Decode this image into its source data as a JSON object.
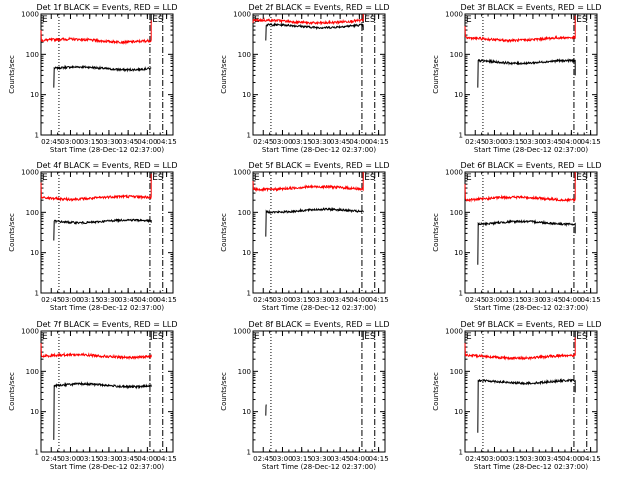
{
  "figure": {
    "x_label": "Start Time (28-Dec-12 02:37:00)",
    "y_label": "Counts/sec",
    "x_ticks": [
      "02:45",
      "03:00",
      "03:15",
      "03:30",
      "03:45",
      "04:00",
      "04:15"
    ],
    "y_ticks": [
      "1",
      "10",
      "100",
      "1000"
    ],
    "colors": {
      "events": "#000000",
      "lld": "#ff0000"
    }
  },
  "chart_data": [
    {
      "type": "line",
      "title": "Det 1f BLACK = Events, RED = LLD",
      "x_range": [
        "02:37:00",
        "04:20:00"
      ],
      "y_scale": "log",
      "ylim": [
        1,
        1000
      ],
      "markers": [
        {
          "label": "E",
          "time": "02:37:00"
        },
        {
          "label": "ES",
          "time": "04:03:00"
        }
      ],
      "vlines": {
        "dotted": [
          "02:51:00"
        ],
        "dashdot": [
          "04:02:00",
          "04:12:00"
        ]
      },
      "series": [
        {
          "name": "BLACK = Events",
          "color": "#000000",
          "start": "02:47:00",
          "end": "04:03:00",
          "start_value": 15,
          "level": 45,
          "end_value": 45
        },
        {
          "name": "RED = LLD",
          "color": "#ff0000",
          "start": "02:37:00",
          "end": "04:03:00",
          "start_value": 400,
          "level": 220,
          "end_value": 700
        }
      ]
    },
    {
      "type": "line",
      "title": "Det 2f BLACK = Events, RED = LLD",
      "x_range": [
        "02:37:00",
        "04:20:00"
      ],
      "y_scale": "log",
      "ylim": [
        1,
        1000
      ],
      "markers": [
        {
          "label": "E",
          "time": "02:37:00"
        },
        {
          "label": "ES",
          "time": "04:03:00"
        }
      ],
      "vlines": {
        "dotted": [
          "02:51:00"
        ],
        "dashdot": [
          "04:02:00",
          "04:12:00"
        ]
      },
      "series": [
        {
          "name": "BLACK = Events",
          "color": "#000000",
          "start": "02:47:00",
          "end": "04:03:00",
          "start_value": 220,
          "level": 500,
          "end_value": 400
        },
        {
          "name": "RED = LLD",
          "color": "#ff0000",
          "start": "02:37:00",
          "end": "04:03:00",
          "start_value": 600,
          "level": 650,
          "end_value": 1000
        }
      ]
    },
    {
      "type": "line",
      "title": "Det 3f BLACK = Events, RED = LLD",
      "x_range": [
        "02:37:00",
        "04:20:00"
      ],
      "y_scale": "log",
      "ylim": [
        1,
        1000
      ],
      "markers": [
        {
          "label": "E",
          "time": "02:37:00"
        },
        {
          "label": "ES",
          "time": "04:03:00"
        }
      ],
      "vlines": {
        "dotted": [
          "02:51:00"
        ],
        "dashdot": [
          "04:02:00",
          "04:12:00"
        ]
      },
      "series": [
        {
          "name": "BLACK = Events",
          "color": "#000000",
          "start": "02:47:00",
          "end": "04:03:00",
          "start_value": 15,
          "level": 65,
          "end_value": 30
        },
        {
          "name": "RED = LLD",
          "color": "#ff0000",
          "start": "02:37:00",
          "end": "04:03:00",
          "start_value": 500,
          "level": 240,
          "end_value": 900
        }
      ]
    },
    {
      "type": "line",
      "title": "Det 4f BLACK = Events, RED = LLD",
      "x_range": [
        "02:37:00",
        "04:20:00"
      ],
      "y_scale": "log",
      "ylim": [
        1,
        1000
      ],
      "markers": [
        {
          "label": "E",
          "time": "02:37:00"
        },
        {
          "label": "ES",
          "time": "04:03:00"
        }
      ],
      "vlines": {
        "dotted": [
          "02:51:00"
        ],
        "dashdot": [
          "04:02:00",
          "04:12:00"
        ]
      },
      "series": [
        {
          "name": "BLACK = Events",
          "color": "#000000",
          "start": "02:47:00",
          "end": "04:03:00",
          "start_value": 20,
          "level": 60,
          "end_value": 55
        },
        {
          "name": "RED = LLD",
          "color": "#ff0000",
          "start": "02:37:00",
          "end": "04:03:00",
          "start_value": 550,
          "level": 230,
          "end_value": 900
        }
      ]
    },
    {
      "type": "line",
      "title": "Det 5f BLACK = Events, RED = LLD",
      "x_range": [
        "02:37:00",
        "04:20:00"
      ],
      "y_scale": "log",
      "ylim": [
        1,
        1000
      ],
      "markers": [
        {
          "label": "E",
          "time": "02:37:00"
        },
        {
          "label": "ES",
          "time": "04:03:00"
        }
      ],
      "vlines": {
        "dotted": [
          "02:51:00"
        ],
        "dashdot": [
          "04:02:00",
          "04:12:00"
        ]
      },
      "series": [
        {
          "name": "BLACK = Events",
          "color": "#000000",
          "start": "02:47:00",
          "end": "04:03:00",
          "start_value": 25,
          "level": 110,
          "end_value": 100
        },
        {
          "name": "RED = LLD",
          "color": "#ff0000",
          "start": "02:37:00",
          "end": "04:03:00",
          "start_value": 600,
          "level": 400,
          "end_value": 1000
        }
      ]
    },
    {
      "type": "line",
      "title": "Det 6f BLACK = Events, RED = LLD",
      "x_range": [
        "02:37:00",
        "04:20:00"
      ],
      "y_scale": "log",
      "ylim": [
        1,
        1000
      ],
      "markers": [
        {
          "label": "E",
          "time": "02:37:00"
        },
        {
          "label": "ES",
          "time": "04:03:00"
        }
      ],
      "vlines": {
        "dotted": [
          "02:51:00"
        ],
        "dashdot": [
          "04:02:00",
          "04:12:00"
        ]
      },
      "series": [
        {
          "name": "BLACK = Events",
          "color": "#000000",
          "start": "02:47:00",
          "end": "04:03:00",
          "start_value": 5,
          "level": 55,
          "end_value": 30
        },
        {
          "name": "RED = LLD",
          "color": "#ff0000",
          "start": "02:37:00",
          "end": "04:03:00",
          "start_value": 500,
          "level": 220,
          "end_value": 1000
        }
      ]
    },
    {
      "type": "line",
      "title": "Det 7f BLACK = Events, RED = LLD",
      "x_range": [
        "02:37:00",
        "04:20:00"
      ],
      "y_scale": "log",
      "ylim": [
        1,
        1000
      ],
      "markers": [
        {
          "label": "E",
          "time": "02:37:00"
        },
        {
          "label": "ES",
          "time": "04:03:00"
        }
      ],
      "vlines": {
        "dotted": [
          "02:51:00"
        ],
        "dashdot": [
          "04:02:00",
          "04:12:00"
        ]
      },
      "series": [
        {
          "name": "BLACK = Events",
          "color": "#000000",
          "start": "02:47:00",
          "end": "04:03:00",
          "start_value": 2,
          "level": 45,
          "end_value": 45
        },
        {
          "name": "RED = LLD",
          "color": "#ff0000",
          "start": "02:37:00",
          "end": "04:03:00",
          "start_value": 500,
          "level": 240,
          "end_value": 260
        }
      ]
    },
    {
      "type": "line",
      "title": "Det 8f BLACK = Events, RED = LLD",
      "x_range": [
        "02:37:00",
        "04:20:00"
      ],
      "y_scale": "log",
      "ylim": [
        1,
        1000
      ],
      "markers": [
        {
          "label": "E",
          "time": "02:37:00"
        },
        {
          "label": "ES",
          "time": "04:03:00"
        }
      ],
      "vlines": {
        "dotted": [
          "02:51:00"
        ],
        "dashdot": [
          "04:02:00",
          "04:12:00"
        ]
      },
      "series": [
        {
          "name": "BLACK = Events",
          "color": "#000000",
          "start": "02:47:00",
          "end": "02:47:20",
          "start_value": 8,
          "level": 15,
          "end_value": 15
        }
      ]
    },
    {
      "type": "line",
      "title": "Det 9f BLACK = Events, RED = LLD",
      "x_range": [
        "02:37:00",
        "04:20:00"
      ],
      "y_scale": "log",
      "ylim": [
        1,
        1000
      ],
      "markers": [
        {
          "label": "E",
          "time": "02:37:00"
        },
        {
          "label": "ES",
          "time": "04:03:00"
        }
      ],
      "vlines": {
        "dotted": [
          "02:51:00"
        ],
        "dashdot": [
          "04:02:00",
          "04:12:00"
        ]
      },
      "series": [
        {
          "name": "BLACK = Events",
          "color": "#000000",
          "start": "02:47:00",
          "end": "04:03:00",
          "start_value": 3,
          "level": 55,
          "end_value": 30
        },
        {
          "name": "RED = LLD",
          "color": "#ff0000",
          "start": "02:37:00",
          "end": "04:03:00",
          "start_value": 500,
          "level": 230,
          "end_value": 700
        }
      ]
    }
  ]
}
